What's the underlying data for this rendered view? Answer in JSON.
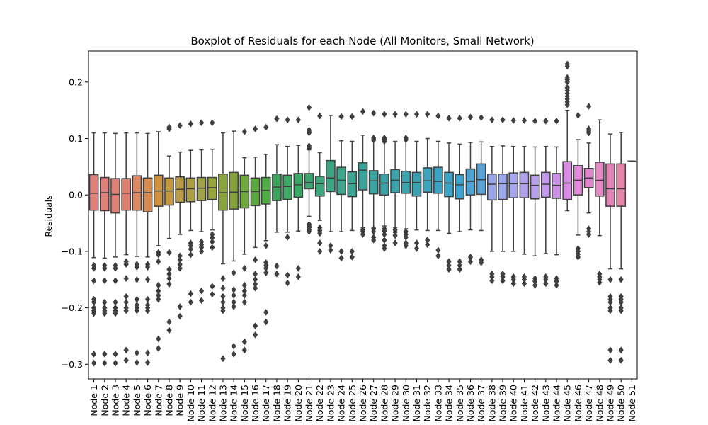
{
  "chart_data": {
    "type": "boxplot",
    "title": "Boxplot of Residuals for each Node (All Monitors, Small Network)",
    "xlabel": "",
    "ylabel": "Residuals",
    "ylim": [
      -0.326,
      0.255
    ],
    "yticks": [
      -0.3,
      -0.2,
      -0.1,
      0.0,
      0.1,
      0.2
    ],
    "ytick_labels": [
      "−0.3",
      "−0.2",
      "−0.1",
      "0.0",
      "0.1",
      "0.2"
    ],
    "grid": false,
    "categories": [
      "Node 1",
      "Node 2",
      "Node 3",
      "Node 4",
      "Node 5",
      "Node 6",
      "Node 7",
      "Node 8",
      "Node 9",
      "Node 10",
      "Node 11",
      "Node 12",
      "Node 13",
      "Node 14",
      "Node 15",
      "Node 16",
      "Node 17",
      "Node 18",
      "Node 19",
      "Node 20",
      "Node 21",
      "Node 22",
      "Node 23",
      "Node 24",
      "Node 25",
      "Node 26",
      "Node 27",
      "Node 28",
      "Node 29",
      "Node 30",
      "Node 31",
      "Node 32",
      "Node 33",
      "Node 34",
      "Node 35",
      "Node 36",
      "Node 37",
      "Node 38",
      "Node 39",
      "Node 40",
      "Node 41",
      "Node 42",
      "Node 43",
      "Node 44",
      "Node 45",
      "Node 46",
      "Node 47",
      "Node 48",
      "Node 49",
      "Node 50",
      "Node 51"
    ],
    "colors": [
      "#e1817d",
      "#e1817d",
      "#df8079",
      "#e07f6f",
      "#db8863",
      "#d98c52",
      "#cf9340",
      "#c49942",
      "#b89c44",
      "#ad9f46",
      "#a0a449",
      "#96a63a",
      "#8aa43d",
      "#86a33b",
      "#6fab3c",
      "#5ba93f",
      "#4fac45",
      "#3ea25d",
      "#3ea763",
      "#3ca868",
      "#3aa66f",
      "#3ba67a",
      "#3ca683",
      "#3ba68b",
      "#3ba591",
      "#3aa39a",
      "#3ba4a1",
      "#3ba3a5",
      "#3da3aa",
      "#3ba3ad",
      "#3aa1b3",
      "#3ca4bb",
      "#3ca4c3",
      "#3ca4c8",
      "#3da3cd",
      "#4aa3d2",
      "#5aa3d6",
      "#9aa7e8",
      "#9da8ea",
      "#a5a6ed",
      "#b1a0ec",
      "#b89fea",
      "#c19aea",
      "#cb92e8",
      "#d88ae2",
      "#e18ad8",
      "#e185cf",
      "#e288c3",
      "#e181b4",
      "#e285a6",
      "#e1849d"
    ],
    "series": [
      {
        "name": "Node 1",
        "q1": -0.027,
        "median": 0.003,
        "q3": 0.036,
        "whisker_low": -0.111,
        "whisker_high": 0.11,
        "outliers": [
          -0.125,
          -0.13,
          -0.152,
          -0.185,
          -0.19,
          -0.2,
          -0.205,
          -0.21,
          -0.282,
          -0.298
        ]
      },
      {
        "name": "Node 2",
        "q1": -0.028,
        "median": 0.004,
        "q3": 0.031,
        "whisker_low": -0.112,
        "whisker_high": 0.11,
        "outliers": [
          -0.125,
          -0.13,
          -0.152,
          -0.19,
          -0.2,
          -0.205,
          -0.21,
          -0.282,
          -0.298
        ]
      },
      {
        "name": "Node 3",
        "q1": -0.032,
        "median": 0.001,
        "q3": 0.029,
        "whisker_low": -0.11,
        "whisker_high": 0.109,
        "outliers": [
          -0.125,
          -0.13,
          -0.152,
          -0.19,
          -0.2,
          -0.205,
          -0.21,
          -0.282,
          -0.298
        ]
      },
      {
        "name": "Node 4",
        "q1": -0.027,
        "median": 0.003,
        "q3": 0.029,
        "whisker_low": -0.106,
        "whisker_high": 0.11,
        "outliers": [
          -0.118,
          -0.123,
          -0.148,
          -0.18,
          -0.19,
          -0.2,
          -0.205,
          -0.275,
          -0.293
        ]
      },
      {
        "name": "Node 5",
        "q1": -0.027,
        "median": 0.004,
        "q3": 0.034,
        "whisker_low": -0.109,
        "whisker_high": 0.11,
        "outliers": [
          -0.123,
          -0.128,
          -0.15,
          -0.185,
          -0.195,
          -0.2,
          -0.205,
          -0.28,
          -0.297
        ]
      },
      {
        "name": "Node 6",
        "q1": -0.03,
        "median": 0.004,
        "q3": 0.03,
        "whisker_low": -0.11,
        "whisker_high": 0.109,
        "outliers": [
          -0.123,
          -0.128,
          -0.15,
          -0.185,
          -0.195,
          -0.2,
          -0.205,
          -0.28,
          -0.297
        ]
      },
      {
        "name": "Node 7",
        "q1": -0.02,
        "median": 0.007,
        "q3": 0.035,
        "whisker_low": -0.09,
        "whisker_high": 0.112,
        "outliers": [
          -0.102,
          -0.106,
          -0.118,
          -0.16,
          -0.17,
          -0.178,
          -0.185,
          -0.255,
          -0.272
        ]
      },
      {
        "name": "Node 8",
        "q1": -0.018,
        "median": 0.007,
        "q3": 0.03,
        "whisker_low": -0.077,
        "whisker_high": 0.069,
        "outliers": [
          0.117,
          0.12,
          -0.102,
          -0.132,
          -0.14,
          -0.148,
          -0.158,
          -0.225,
          -0.24
        ]
      },
      {
        "name": "Node 9",
        "q1": -0.013,
        "median": 0.01,
        "q3": 0.032,
        "whisker_low": -0.07,
        "whisker_high": 0.076,
        "outliers": [
          0.123,
          -0.108,
          -0.115,
          -0.123,
          -0.13,
          -0.198,
          -0.215
        ]
      },
      {
        "name": "Node 10",
        "q1": -0.012,
        "median": 0.011,
        "q3": 0.03,
        "whisker_low": -0.063,
        "whisker_high": 0.079,
        "outliers": [
          0.126,
          -0.085,
          -0.09,
          -0.096,
          -0.106,
          -0.175,
          -0.19
        ]
      },
      {
        "name": "Node 11",
        "q1": -0.01,
        "median": 0.012,
        "q3": 0.031,
        "whisker_low": -0.065,
        "whisker_high": 0.08,
        "outliers": [
          0.128,
          -0.083,
          -0.088,
          -0.093,
          -0.1,
          -0.17,
          -0.187
        ]
      },
      {
        "name": "Node 12",
        "q1": -0.008,
        "median": 0.013,
        "q3": 0.031,
        "whisker_low": -0.062,
        "whisker_high": 0.081,
        "outliers": [
          0.128,
          -0.07,
          -0.076,
          -0.083,
          -0.093,
          -0.162,
          -0.176
        ]
      },
      {
        "name": "Node 13",
        "q1": -0.027,
        "median": 0.004,
        "q3": 0.037,
        "whisker_low": -0.122,
        "whisker_high": 0.11,
        "outliers": [
          -0.148,
          -0.165,
          -0.18,
          -0.19,
          -0.2,
          -0.205,
          -0.29
        ]
      },
      {
        "name": "Node 14",
        "q1": -0.025,
        "median": 0.005,
        "q3": 0.04,
        "whisker_low": -0.117,
        "whisker_high": 0.113,
        "outliers": [
          -0.138,
          -0.168,
          -0.178,
          -0.19,
          -0.198,
          -0.268,
          -0.282
        ]
      },
      {
        "name": "Node 15",
        "q1": -0.023,
        "median": 0.006,
        "q3": 0.035,
        "whisker_low": -0.105,
        "whisker_high": 0.066,
        "outliers": [
          0.112,
          -0.13,
          -0.16,
          -0.17,
          -0.178,
          -0.19,
          -0.26,
          -0.275
        ]
      },
      {
        "name": "Node 16",
        "q1": -0.019,
        "median": 0.006,
        "q3": 0.03,
        "whisker_low": -0.093,
        "whisker_high": 0.067,
        "outliers": [
          0.117,
          -0.115,
          -0.14,
          -0.15,
          -0.158,
          -0.165,
          -0.232,
          -0.248
        ]
      },
      {
        "name": "Node 17",
        "q1": -0.016,
        "median": 0.008,
        "q3": 0.031,
        "whisker_low": -0.081,
        "whisker_high": 0.072,
        "outliers": [
          0.12,
          -0.09,
          -0.12,
          -0.125,
          -0.13,
          -0.138,
          -0.208,
          -0.225
        ]
      },
      {
        "name": "Node 18",
        "q1": -0.01,
        "median": 0.014,
        "q3": 0.037,
        "whisker_low": -0.066,
        "whisker_high": 0.089,
        "outliers": [
          0.135,
          -0.126,
          -0.14
        ]
      },
      {
        "name": "Node 19",
        "q1": -0.008,
        "median": 0.015,
        "q3": 0.035,
        "whisker_low": -0.066,
        "whisker_high": 0.086,
        "outliers": [
          0.133,
          -0.075,
          -0.142,
          -0.156
        ]
      },
      {
        "name": "Node 20",
        "q1": -0.004,
        "median": 0.018,
        "q3": 0.038,
        "whisker_low": -0.064,
        "whisker_high": 0.088,
        "outliers": [
          0.133,
          -0.13,
          -0.145
        ]
      },
      {
        "name": "Node 21",
        "q1": 0.011,
        "median": 0.022,
        "q3": 0.038,
        "whisker_low": -0.038,
        "whisker_high": 0.08,
        "outliers": [
          0.155,
          0.115,
          0.112,
          0.11,
          0.087,
          0.083,
          -0.052,
          -0.055,
          -0.058,
          -0.062,
          -0.065
        ]
      },
      {
        "name": "Node 22",
        "q1": -0.002,
        "median": 0.02,
        "q3": 0.033,
        "whisker_low": -0.045,
        "whisker_high": 0.075,
        "outliers": [
          0.14,
          -0.058,
          -0.063,
          -0.068,
          -0.085,
          -0.1
        ]
      },
      {
        "name": "Node 23",
        "q1": 0.006,
        "median": 0.03,
        "q3": 0.061,
        "whisker_low": -0.065,
        "whisker_high": 0.141,
        "outliers": [
          -0.09,
          -0.098
        ]
      },
      {
        "name": "Node 24",
        "q1": 0.001,
        "median": 0.026,
        "q3": 0.049,
        "whisker_low": -0.065,
        "whisker_high": 0.096,
        "outliers": [
          0.139,
          -0.1,
          -0.112
        ]
      },
      {
        "name": "Node 25",
        "q1": -0.003,
        "median": 0.02,
        "q3": 0.041,
        "whisker_low": -0.063,
        "whisker_high": 0.095,
        "outliers": [
          0.139,
          -0.1,
          -0.11
        ]
      },
      {
        "name": "Node 26",
        "q1": 0.009,
        "median": 0.044,
        "q3": 0.057,
        "whisker_low": -0.058,
        "whisker_high": 0.106,
        "outliers": [
          0.148,
          -0.062,
          -0.065,
          -0.07
        ]
      },
      {
        "name": "Node 27",
        "q1": 0.002,
        "median": 0.025,
        "q3": 0.043,
        "whisker_low": -0.058,
        "whisker_high": 0.096,
        "outliers": [
          0.145,
          0.101,
          0.098,
          -0.06,
          -0.065,
          -0.075,
          -0.08
        ]
      },
      {
        "name": "Node 28",
        "q1": 0.0,
        "median": 0.021,
        "q3": 0.037,
        "whisker_low": -0.055,
        "whisker_high": 0.094,
        "outliers": [
          0.143,
          0.101,
          0.098,
          0.095,
          -0.06,
          -0.064,
          -0.07,
          -0.08,
          -0.09,
          -0.095
        ]
      },
      {
        "name": "Node 29",
        "q1": 0.004,
        "median": 0.026,
        "q3": 0.045,
        "whisker_low": -0.058,
        "whisker_high": 0.095,
        "outliers": [
          0.143,
          -0.062,
          -0.066,
          -0.072,
          -0.085
        ]
      },
      {
        "name": "Node 30",
        "q1": 0.003,
        "median": 0.022,
        "q3": 0.042,
        "whisker_low": -0.06,
        "whisker_high": 0.097,
        "outliers": [
          0.143,
          0.101,
          0.098,
          -0.065,
          -0.07,
          -0.075,
          -0.085,
          -0.09
        ]
      },
      {
        "name": "Node 31",
        "q1": -0.002,
        "median": 0.022,
        "q3": 0.04,
        "whisker_low": -0.062,
        "whisker_high": 0.095,
        "outliers": [
          0.143,
          -0.085,
          -0.095
        ]
      },
      {
        "name": "Node 32",
        "q1": 0.005,
        "median": 0.025,
        "q3": 0.048,
        "whisker_low": -0.063,
        "whisker_high": 0.1,
        "outliers": [
          0.143,
          -0.08,
          -0.088
        ]
      },
      {
        "name": "Node 33",
        "q1": 0.003,
        "median": 0.024,
        "q3": 0.049,
        "whisker_low": -0.063,
        "whisker_high": 0.095,
        "outliers": [
          0.14,
          -0.098,
          -0.108
        ]
      },
      {
        "name": "Node 34",
        "q1": -0.003,
        "median": 0.021,
        "q3": 0.04,
        "whisker_low": -0.068,
        "whisker_high": 0.092,
        "outliers": [
          0.136,
          -0.118,
          -0.125,
          -0.132
        ]
      },
      {
        "name": "Node 35",
        "q1": -0.007,
        "median": 0.018,
        "q3": 0.036,
        "whisker_low": -0.065,
        "whisker_high": 0.09,
        "outliers": [
          0.136,
          -0.118,
          -0.125,
          -0.132
        ]
      },
      {
        "name": "Node 36",
        "q1": 0.0,
        "median": 0.024,
        "q3": 0.046,
        "whisker_low": -0.062,
        "whisker_high": 0.093,
        "outliers": [
          0.138,
          -0.11,
          -0.118
        ]
      },
      {
        "name": "Node 37",
        "q1": 0.001,
        "median": 0.027,
        "q3": 0.055,
        "whisker_low": -0.063,
        "whisker_high": 0.094,
        "outliers": [
          0.137,
          -0.115,
          -0.12
        ]
      },
      {
        "name": "Node 38",
        "q1": -0.009,
        "median": 0.019,
        "q3": 0.037,
        "whisker_low": -0.1,
        "whisker_high": 0.086,
        "outliers": [
          0.133,
          -0.14,
          -0.145,
          -0.152
        ]
      },
      {
        "name": "Node 39",
        "q1": -0.008,
        "median": 0.02,
        "q3": 0.037,
        "whisker_low": -0.1,
        "whisker_high": 0.087,
        "outliers": [
          0.133,
          -0.14,
          -0.145,
          -0.152
        ]
      },
      {
        "name": "Node 40",
        "q1": -0.005,
        "median": 0.02,
        "q3": 0.039,
        "whisker_low": -0.1,
        "whisker_high": 0.086,
        "outliers": [
          0.132,
          -0.145,
          -0.15,
          -0.157
        ]
      },
      {
        "name": "Node 41",
        "q1": -0.005,
        "median": 0.02,
        "q3": 0.04,
        "whisker_low": -0.105,
        "whisker_high": 0.086,
        "outliers": [
          0.132,
          -0.145,
          -0.15,
          -0.157
        ]
      },
      {
        "name": "Node 42",
        "q1": -0.007,
        "median": 0.017,
        "q3": 0.035,
        "whisker_low": -0.108,
        "whisker_high": 0.085,
        "outliers": [
          0.131,
          -0.148,
          -0.153,
          -0.16
        ]
      },
      {
        "name": "Node 43",
        "q1": -0.004,
        "median": 0.019,
        "q3": 0.04,
        "whisker_low": -0.104,
        "whisker_high": 0.086,
        "outliers": [
          0.131,
          -0.145,
          -0.15,
          -0.157
        ]
      },
      {
        "name": "Node 44",
        "q1": -0.006,
        "median": 0.017,
        "q3": 0.038,
        "whisker_low": -0.106,
        "whisker_high": 0.085,
        "outliers": [
          0.131,
          -0.148,
          -0.153,
          -0.16
        ]
      },
      {
        "name": "Node 45",
        "q1": -0.008,
        "median": 0.021,
        "q3": 0.059,
        "whisker_low": -0.028,
        "whisker_high": 0.15,
        "outliers": [
          0.232,
          0.228,
          0.208,
          0.204,
          0.2,
          0.19,
          0.185,
          0.18,
          0.175,
          0.17,
          0.165,
          0.16
        ]
      },
      {
        "name": "Node 46",
        "q1": 0.0,
        "median": 0.026,
        "q3": 0.052,
        "whisker_low": -0.071,
        "whisker_high": 0.098,
        "outliers": [
          0.141,
          -0.095,
          -0.1,
          -0.105,
          -0.11
        ]
      },
      {
        "name": "Node 47",
        "q1": 0.013,
        "median": 0.03,
        "q3": 0.047,
        "whisker_low": -0.032,
        "whisker_high": 0.092,
        "outliers": [
          0.157,
          0.117,
          0.113,
          0.11,
          -0.06,
          -0.065,
          -0.07
        ]
      },
      {
        "name": "Node 48",
        "q1": -0.002,
        "median": 0.026,
        "q3": 0.058,
        "whisker_low": -0.072,
        "whisker_high": 0.133,
        "outliers": [
          -0.14,
          -0.145,
          -0.15,
          -0.155
        ]
      },
      {
        "name": "Node 49",
        "q1": -0.02,
        "median": 0.011,
        "q3": 0.055,
        "whisker_low": -0.131,
        "whisker_high": 0.108,
        "outliers": [
          -0.15,
          -0.18,
          -0.185,
          -0.19,
          -0.2,
          -0.205,
          -0.275,
          -0.293
        ]
      },
      {
        "name": "Node 50",
        "q1": -0.02,
        "median": 0.011,
        "q3": 0.055,
        "whisker_low": -0.131,
        "whisker_high": 0.111,
        "outliers": [
          -0.15,
          -0.18,
          -0.185,
          -0.19,
          -0.2,
          -0.205,
          -0.275,
          -0.293
        ]
      },
      {
        "name": "Node 51",
        "q1": 0.06,
        "median": 0.06,
        "q3": 0.06,
        "whisker_low": 0.06,
        "whisker_high": 0.06,
        "outliers": []
      }
    ]
  }
}
